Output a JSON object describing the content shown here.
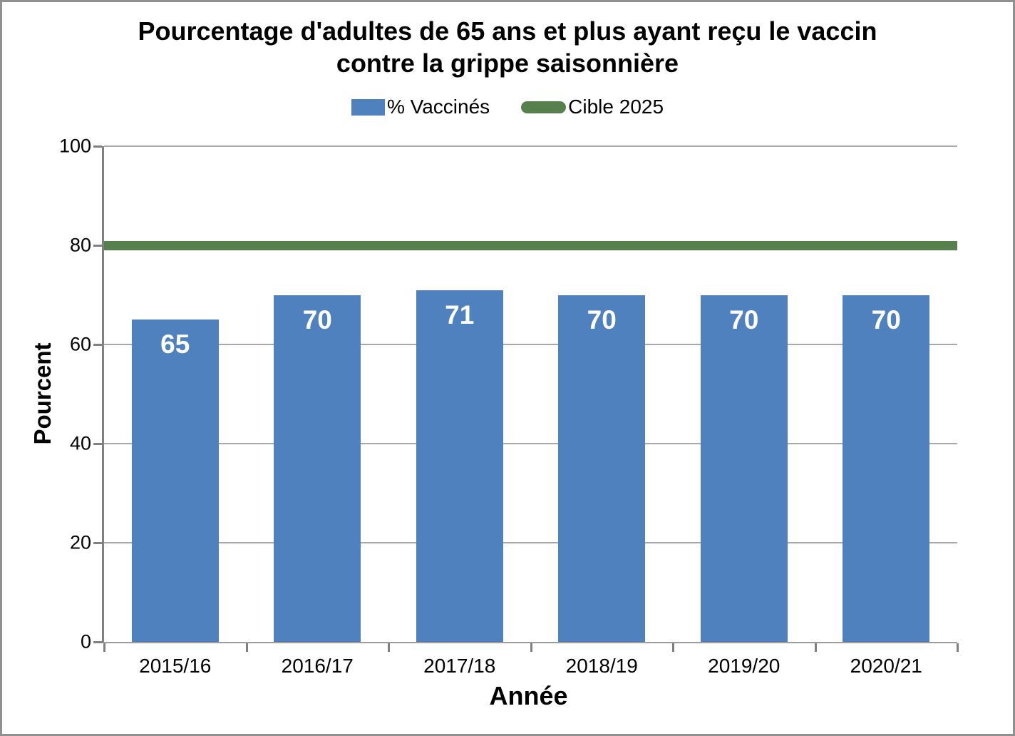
{
  "chart_data": {
    "type": "bar",
    "title": "Pourcentage d'adultes de 65 ans et plus ayant reçu le vaccin contre la grippe saisonnière",
    "xlabel": "Année",
    "ylabel": "Pourcent",
    "categories": [
      "2015/16",
      "2016/17",
      "2017/18",
      "2018/19",
      "2019/20",
      "2020/21"
    ],
    "series": [
      {
        "name": "% Vaccinés",
        "type": "bar",
        "values": [
          65,
          70,
          71,
          70,
          70,
          70
        ]
      },
      {
        "name": "Cible 2025",
        "type": "line",
        "value": 80
      }
    ],
    "ylim": [
      0,
      100
    ],
    "ytick_step": 20,
    "grid": true,
    "legend_position": "top",
    "colors": {
      "bar": "#4E81BD",
      "target": "#56804C",
      "bar_label": "#FFFFFF",
      "grid": "#A8A8A8",
      "axis": "#808080",
      "frame": "#909090"
    }
  }
}
